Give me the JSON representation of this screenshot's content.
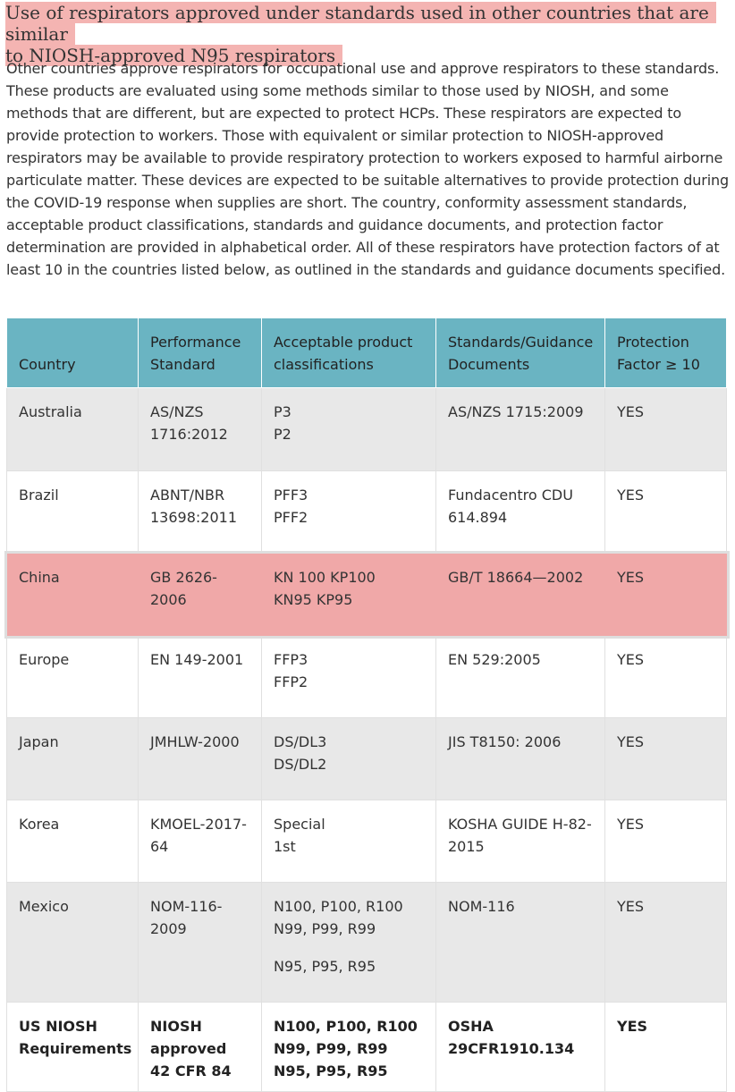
{
  "heading": {
    "line1": "Use of respirators approved under standards used in other countries that are similar",
    "line2": "to NIOSH-approved N95 respirators"
  },
  "intro": "Other countries approve respirators for occupational use and approve respirators to these standards. These products are evaluated using some methods similar to those used by NIOSH, and some methods that are different, but are expected to protect HCPs. These respirators are expected to provide protection to workers. Those with equivalent or similar protection to NIOSH-approved respirators may be available to provide respiratory protection to workers exposed to harmful airborne particulate matter. These devices are expected to be suitable alternatives to provide protection during the COVID-19 response when supplies are short. The country, conformity assessment standards, acceptable product classifications, standards and guidance documents, and protection factor determination are provided in alphabetical order. All of these respirators have protection factors of at least 10 in the countries listed below, as outlined in the standards and guidance documents specified.",
  "table": {
    "headers": [
      "Country",
      "Performance Standard",
      "Acceptable product classifications",
      "Standards/Guidance Documents",
      "Protection Factor ≥ 10"
    ],
    "rows": [
      {
        "country": "Australia",
        "standard": "AS/NZS 1716:2012",
        "classes": [
          "P3",
          "P2"
        ],
        "docs": "AS/NZS 1715:2009",
        "pf": "YES"
      },
      {
        "country": "Brazil",
        "standard": "ABNT/NBR 13698:2011",
        "classes": [
          "PFF3",
          "PFF2"
        ],
        "docs": "Fundacentro CDU 614.894",
        "pf": "YES"
      },
      {
        "country": "China",
        "standard": "GB 2626-2006",
        "classes": [
          "KN 100 KP100",
          "KN95 KP95"
        ],
        "docs": "GB/T 18664—2002",
        "pf": "YES"
      },
      {
        "country": "Europe",
        "standard": "EN 149-2001",
        "classes": [
          "FFP3",
          "FFP2"
        ],
        "docs": "EN 529:2005",
        "pf": "YES"
      },
      {
        "country": "Japan",
        "standard": "JMHLW-2000",
        "classes": [
          "DS/DL3",
          "DS/DL2"
        ],
        "docs": "JIS T8150: 2006",
        "pf": "YES"
      },
      {
        "country": "Korea",
        "standard": "KMOEL-2017-64",
        "classes": [
          "Special",
          "1st"
        ],
        "docs": "KOSHA GUIDE H-82-2015",
        "pf": "YES"
      },
      {
        "country": "Mexico",
        "standard": "NOM-116-2009",
        "classes": [
          "N100, P100, R100",
          "N99, P99, R99",
          "N95, P95, R95"
        ],
        "docs": "NOM-116",
        "pf": "YES"
      },
      {
        "country": "US NIOSH Requirements",
        "standard": "NIOSH approved 42 CFR 84",
        "classes": [
          "N100, P100, R100",
          "N99, P99, R99",
          "N95, P95, R95"
        ],
        "docs": "OSHA 29CFR1910.134",
        "pf": "YES"
      }
    ]
  }
}
